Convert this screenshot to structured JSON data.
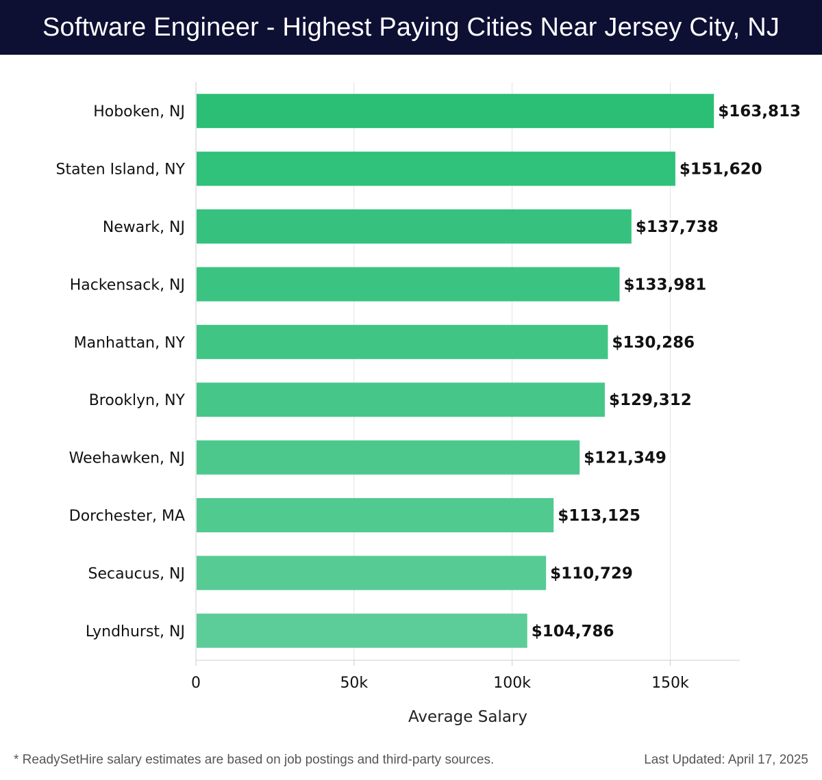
{
  "header": {
    "title": "Software Engineer - Highest Paying Cities Near Jersey City, NJ"
  },
  "chart_data": {
    "type": "bar",
    "orientation": "horizontal",
    "title": "Software Engineer - Highest Paying Cities Near Jersey City, NJ",
    "xlabel": "Average Salary",
    "ylabel": "",
    "xlim": [
      0,
      172000
    ],
    "ticks": [
      {
        "value": 0,
        "label": "0"
      },
      {
        "value": 50000,
        "label": "50k"
      },
      {
        "value": 100000,
        "label": "100k"
      },
      {
        "value": 150000,
        "label": "150k"
      }
    ],
    "grid": "vertical",
    "categories": [
      "Hoboken, NJ",
      "Staten Island, NY",
      "Newark, NJ",
      "Hackensack, NJ",
      "Manhattan, NY",
      "Brooklyn, NY",
      "Weehawken, NJ",
      "Dorchester, MA",
      "Secaucus, NJ",
      "Lyndhurst, NJ"
    ],
    "values": [
      163813,
      151620,
      137738,
      133981,
      130286,
      129312,
      121349,
      113125,
      110729,
      104786
    ],
    "value_labels": [
      "$163,813",
      "$151,620",
      "$137,738",
      "$133,981",
      "$130,286",
      "$129,312",
      "$121,349",
      "$113,125",
      "$110,729",
      "$104,786"
    ],
    "colors": {
      "bar_top": "#2bbf76",
      "bar_bottom": "#5ccd98",
      "grid": "#e3e3e3",
      "axis": "#cccccc",
      "label": "#111111"
    }
  },
  "footer": {
    "note": "* ReadySetHire salary estimates are based on job postings and third-party sources.",
    "updated": "Last Updated: April 17, 2025"
  }
}
